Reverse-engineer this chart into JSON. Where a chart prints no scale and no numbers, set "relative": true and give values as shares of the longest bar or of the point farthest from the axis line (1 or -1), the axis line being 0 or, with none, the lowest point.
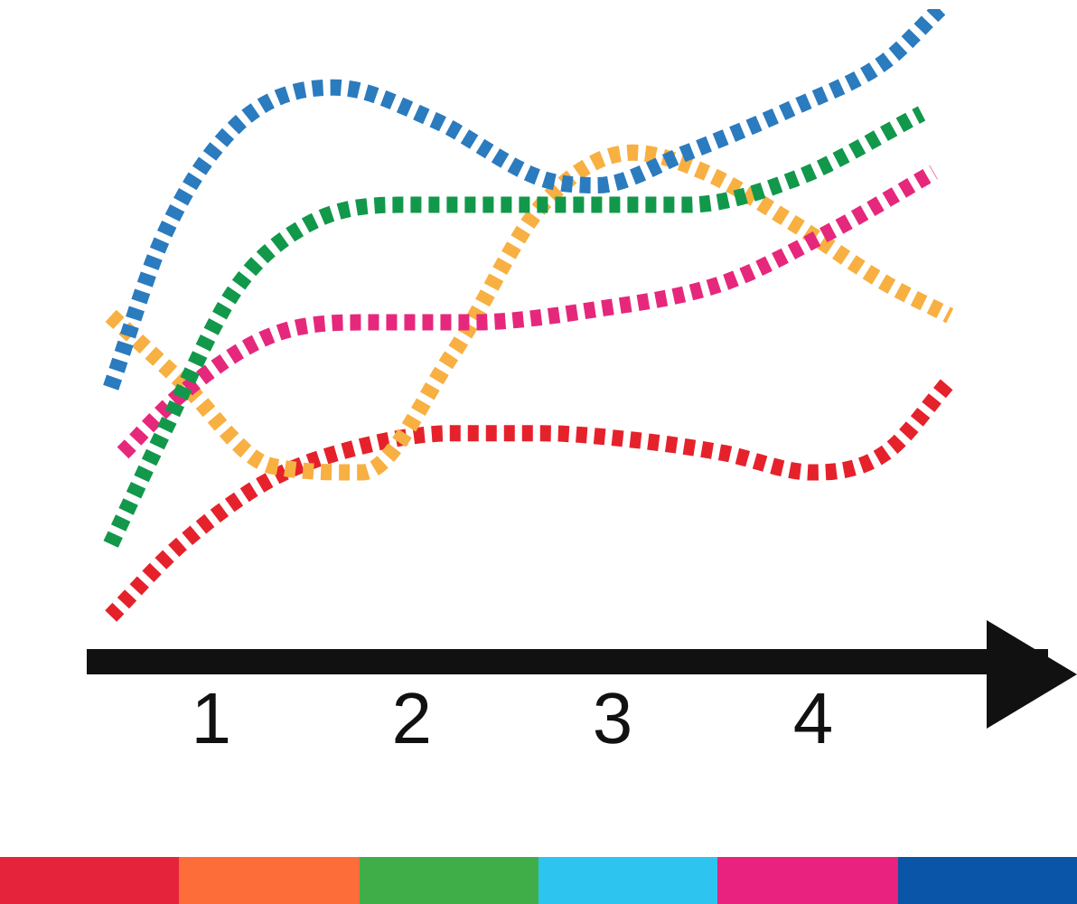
{
  "chart_data": {
    "type": "line",
    "relative": true,
    "line_style": "dotted",
    "marker": "none",
    "grid": false,
    "legend": false,
    "tick_labels": "x",
    "xlim": [
      0.38,
      5.17
    ],
    "xticks": [
      1,
      2,
      3,
      4
    ],
    "series": [
      {
        "color": "#2b7bbf",
        "x": [
          0.5,
          0.76,
          1.12,
          1.61,
          2.11,
          2.65,
          2.92,
          3.37,
          3.91,
          4.36,
          4.63
        ],
        "values": [
          0.42,
          0.65,
          0.82,
          0.88,
          0.83,
          0.74,
          0.73,
          0.78,
          0.85,
          0.92,
          1
        ]
      },
      {
        "color": "#12984a",
        "x": [
          0.5,
          0.76,
          1.12,
          1.48,
          1.93,
          2.65,
          3.37,
          3.91,
          4.54
        ],
        "values": [
          0.18,
          0.35,
          0.57,
          0.67,
          0.7,
          0.7,
          0.7,
          0.74,
          0.84
        ]
      },
      {
        "color": "#e6287c",
        "x": [
          0.56,
          0.85,
          1.3,
          1.75,
          2.29,
          2.92,
          3.55,
          4.09,
          4.6
        ],
        "values": [
          0.32,
          0.41,
          0.5,
          0.52,
          0.52,
          0.54,
          0.58,
          0.66,
          0.75
        ]
      },
      {
        "color": "#f8b042",
        "x": [
          0.5,
          0.85,
          1.3,
          1.75,
          2.2,
          2.65,
          3.1,
          3.46,
          3.91,
          4.36,
          4.68
        ],
        "values": [
          0.53,
          0.43,
          0.3,
          0.29,
          0.47,
          0.7,
          0.78,
          0.75,
          0.67,
          0.58,
          0.53
        ]
      },
      {
        "color": "#e5222b",
        "x": [
          0.5,
          0.85,
          1.3,
          1.75,
          2.2,
          2.65,
          3.1,
          3.55,
          4.0,
          4.36,
          4.68
        ],
        "values": [
          0.07,
          0.18,
          0.28,
          0.33,
          0.35,
          0.35,
          0.34,
          0.32,
          0.29,
          0.32,
          0.43
        ]
      }
    ]
  }
}
